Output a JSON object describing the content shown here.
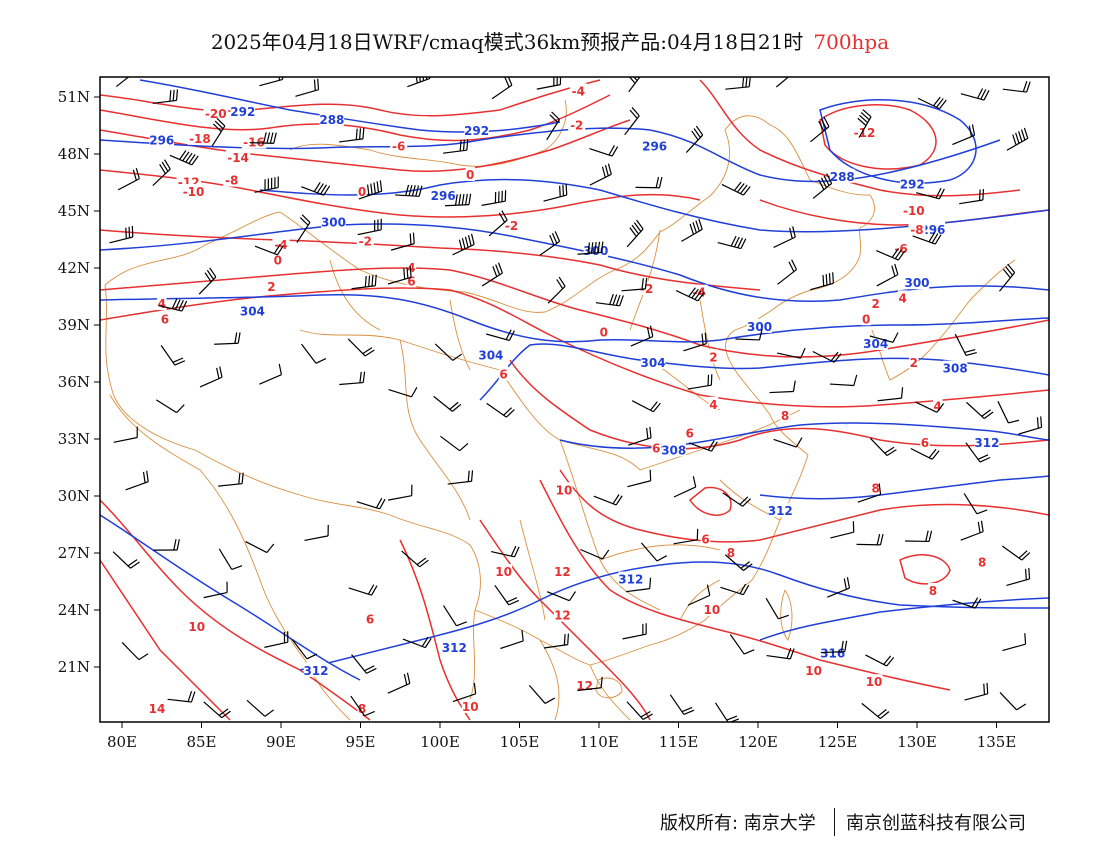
{
  "title": {
    "main": "2025年04月18日WRF/cmaq模式36km预报产品:04月18日21时",
    "level": "700hpa",
    "level_color": "#e83030"
  },
  "axes": {
    "lon_labels": [
      "80E",
      "85E",
      "90E",
      "95E",
      "100E",
      "105E",
      "110E",
      "115E",
      "120E",
      "125E",
      "130E",
      "135E"
    ],
    "lat_labels": [
      "51N",
      "48N",
      "45N",
      "42N",
      "39N",
      "36N",
      "33N",
      "30N",
      "27N",
      "24N",
      "21N"
    ]
  },
  "colors": {
    "temperature": "#e83030",
    "geopotential": "#1f3fd8",
    "boundaries": "#d99040",
    "wind": "#000000"
  },
  "contour_labels": {
    "blue": [
      {
        "text": "292",
        "lon": 87.6,
        "lat": 50.2
      },
      {
        "text": "296",
        "lon": 82.5,
        "lat": 48.7
      },
      {
        "text": "288",
        "lon": 93.2,
        "lat": 49.8
      },
      {
        "text": "292",
        "lon": 102.3,
        "lat": 49.2
      },
      {
        "text": "296",
        "lon": 113.5,
        "lat": 48.4
      },
      {
        "text": "296",
        "lon": 100.2,
        "lat": 45.8
      },
      {
        "text": "300",
        "lon": 93.3,
        "lat": 44.4
      },
      {
        "text": "288",
        "lon": 125.3,
        "lat": 46.8
      },
      {
        "text": "292",
        "lon": 129.7,
        "lat": 46.4
      },
      {
        "text": "296",
        "lon": 131.0,
        "lat": 44.0
      },
      {
        "text": "300",
        "lon": 109.8,
        "lat": 42.9
      },
      {
        "text": "300",
        "lon": 130.0,
        "lat": 41.2
      },
      {
        "text": "304",
        "lon": 88.2,
        "lat": 39.7
      },
      {
        "text": "300",
        "lon": 120.1,
        "lat": 38.9
      },
      {
        "text": "304",
        "lon": 127.4,
        "lat": 38.0
      },
      {
        "text": "304",
        "lon": 103.2,
        "lat": 37.4
      },
      {
        "text": "304",
        "lon": 113.4,
        "lat": 37.0
      },
      {
        "text": "308",
        "lon": 132.4,
        "lat": 36.7
      },
      {
        "text": "312",
        "lon": 134.4,
        "lat": 32.8
      },
      {
        "text": "308",
        "lon": 114.7,
        "lat": 32.4
      },
      {
        "text": "312",
        "lon": 121.4,
        "lat": 29.2
      },
      {
        "text": "312",
        "lon": 112.0,
        "lat": 25.6
      },
      {
        "text": "312",
        "lon": 100.9,
        "lat": 22.0
      },
      {
        "text": "312",
        "lon": 92.2,
        "lat": 20.8
      },
      {
        "text": "316",
        "lon": 124.7,
        "lat": 21.7
      }
    ],
    "red": [
      {
        "text": "-20",
        "lon": 85.9,
        "lat": 50.1
      },
      {
        "text": "-18",
        "lon": 84.9,
        "lat": 48.8
      },
      {
        "text": "-16",
        "lon": 88.3,
        "lat": 48.6
      },
      {
        "text": "-14",
        "lon": 87.3,
        "lat": 47.8
      },
      {
        "text": "-12",
        "lon": 84.2,
        "lat": 46.5
      },
      {
        "text": "-8",
        "lon": 86.9,
        "lat": 46.6
      },
      {
        "text": "-10",
        "lon": 84.5,
        "lat": 46.0
      },
      {
        "text": "-6",
        "lon": 97.4,
        "lat": 48.4
      },
      {
        "text": "0",
        "lon": 95.1,
        "lat": 46.0
      },
      {
        "text": "0",
        "lon": 101.9,
        "lat": 46.9
      },
      {
        "text": "-4",
        "lon": 108.7,
        "lat": 51.3
      },
      {
        "text": "-2",
        "lon": 108.6,
        "lat": 49.5
      },
      {
        "text": "-12",
        "lon": 126.7,
        "lat": 49.1
      },
      {
        "text": "-10",
        "lon": 129.8,
        "lat": 45.0
      },
      {
        "text": "-8",
        "lon": 130.0,
        "lat": 44.0
      },
      {
        "text": "-6",
        "lon": 129.0,
        "lat": 43.0
      },
      {
        "text": "-4",
        "lon": 90.0,
        "lat": 43.2
      },
      {
        "text": "-2",
        "lon": 95.3,
        "lat": 43.4
      },
      {
        "text": "-2",
        "lon": 104.5,
        "lat": 44.2
      },
      {
        "text": "0",
        "lon": 89.8,
        "lat": 42.4
      },
      {
        "text": "2",
        "lon": 89.4,
        "lat": 41.0
      },
      {
        "text": "4",
        "lon": 82.5,
        "lat": 40.1
      },
      {
        "text": "6",
        "lon": 82.7,
        "lat": 39.3
      },
      {
        "text": "4",
        "lon": 98.2,
        "lat": 42.0
      },
      {
        "text": "6",
        "lon": 98.2,
        "lat": 41.3
      },
      {
        "text": "-2",
        "lon": 113.0,
        "lat": 40.9
      },
      {
        "text": "-4",
        "lon": 116.3,
        "lat": 40.7
      },
      {
        "text": "0",
        "lon": 110.3,
        "lat": 38.6
      },
      {
        "text": "0",
        "lon": 126.8,
        "lat": 39.3
      },
      {
        "text": "2",
        "lon": 127.4,
        "lat": 40.1
      },
      {
        "text": "4",
        "lon": 129.1,
        "lat": 40.4
      },
      {
        "text": "2",
        "lon": 117.2,
        "lat": 37.3
      },
      {
        "text": "2",
        "lon": 129.8,
        "lat": 37.0
      },
      {
        "text": "6",
        "lon": 104.0,
        "lat": 36.4
      },
      {
        "text": "4",
        "lon": 117.2,
        "lat": 34.8
      },
      {
        "text": "8",
        "lon": 121.7,
        "lat": 34.2
      },
      {
        "text": "4",
        "lon": 131.3,
        "lat": 34.7
      },
      {
        "text": "6",
        "lon": 115.7,
        "lat": 33.3
      },
      {
        "text": "6",
        "lon": 130.5,
        "lat": 32.8
      },
      {
        "text": "6",
        "lon": 113.6,
        "lat": 32.5
      },
      {
        "text": "10",
        "lon": 107.8,
        "lat": 30.3
      },
      {
        "text": "8",
        "lon": 127.4,
        "lat": 30.4
      },
      {
        "text": "6",
        "lon": 116.7,
        "lat": 27.7
      },
      {
        "text": "8",
        "lon": 118.3,
        "lat": 27.0
      },
      {
        "text": "8",
        "lon": 134.1,
        "lat": 26.5
      },
      {
        "text": "10",
        "lon": 104.0,
        "lat": 26.0
      },
      {
        "text": "12",
        "lon": 107.7,
        "lat": 26.0
      },
      {
        "text": "8",
        "lon": 131.0,
        "lat": 25.0
      },
      {
        "text": "12",
        "lon": 107.7,
        "lat": 23.7
      },
      {
        "text": "10",
        "lon": 117.1,
        "lat": 24.0
      },
      {
        "text": "10",
        "lon": 84.7,
        "lat": 23.1
      },
      {
        "text": "6",
        "lon": 95.6,
        "lat": 23.5
      },
      {
        "text": "10",
        "lon": 123.5,
        "lat": 20.8
      },
      {
        "text": "10",
        "lon": 127.3,
        "lat": 20.2
      },
      {
        "text": "12",
        "lon": 109.1,
        "lat": 20.0
      },
      {
        "text": "14",
        "lon": 82.2,
        "lat": 18.8
      },
      {
        "text": "8",
        "lon": 95.1,
        "lat": 18.8
      },
      {
        "text": "10",
        "lon": 101.9,
        "lat": 18.9
      }
    ]
  },
  "footer": {
    "left": "版权所有: 南京大学",
    "right": "南京创蓝科技有限公司"
  }
}
